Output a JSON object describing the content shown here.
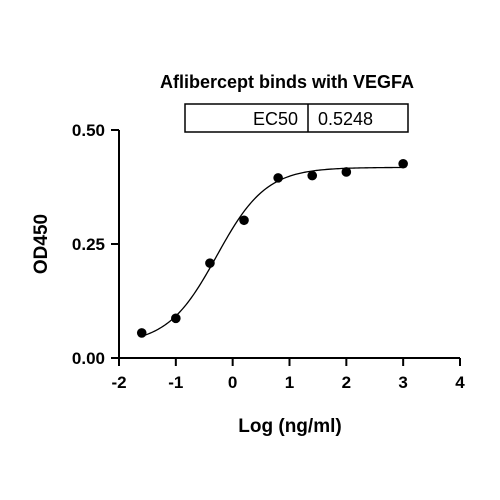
{
  "chart_data": {
    "type": "scatter",
    "title": "Aflibercept binds with VEGFA",
    "xlabel": "Log (ng/ml)",
    "ylabel": "OD450",
    "xlim": [
      -2,
      4
    ],
    "ylim": [
      0,
      0.5
    ],
    "xticks": [
      "-2",
      "-1",
      "0",
      "1",
      "2",
      "3",
      "4"
    ],
    "yticks": [
      "0.00",
      "0.25",
      "0.50"
    ],
    "grid": false,
    "series": [
      {
        "points": [
          {
            "x": -1.6,
            "y": 0.055
          },
          {
            "x": -1.0,
            "y": 0.087
          },
          {
            "x": -0.4,
            "y": 0.208
          },
          {
            "x": 0.2,
            "y": 0.302
          },
          {
            "x": 0.8,
            "y": 0.395
          },
          {
            "x": 1.4,
            "y": 0.4
          },
          {
            "x": 2.0,
            "y": 0.408
          },
          {
            "x": 3.0,
            "y": 0.426
          }
        ],
        "fit": {
          "model": "4PL sigmoid",
          "bottom": 0.03,
          "top": 0.418,
          "logEC50": -0.28,
          "hill": 1.0
        }
      }
    ],
    "ec50_table": {
      "label": "EC50",
      "value": "0.5248"
    }
  }
}
